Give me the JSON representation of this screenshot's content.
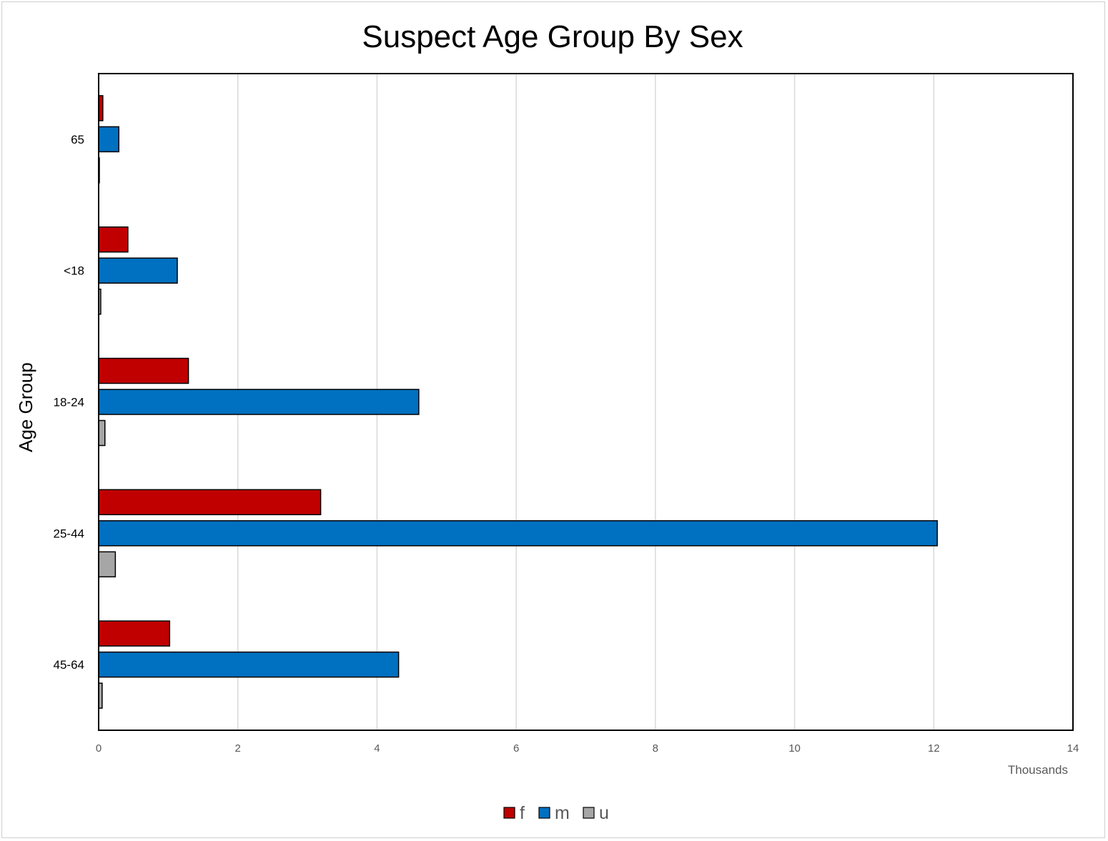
{
  "chart_data": {
    "type": "bar",
    "orientation": "horizontal",
    "title": "Suspect Age Group By Sex",
    "xlabel": "",
    "ylabel": "Age Group",
    "x_units_label": "Thousands",
    "xlim": [
      0,
      14
    ],
    "x_ticks": [
      "0",
      "2",
      "4",
      "6",
      "8",
      "10",
      "12",
      "14"
    ],
    "grid": "vertical",
    "legend_position": "bottom",
    "categories": [
      "65",
      "<18",
      "18-24",
      "25-44",
      "45-64"
    ],
    "series": [
      {
        "name": "f",
        "color": "#c00000",
        "values": [
          0.06,
          0.42,
          1.29,
          3.19,
          1.02
        ]
      },
      {
        "name": "m",
        "color": "#0070c0",
        "values": [
          0.29,
          1.13,
          4.6,
          12.05,
          4.31
        ]
      },
      {
        "name": "u",
        "color": "#a6a6a6",
        "values": [
          0.01,
          0.03,
          0.09,
          0.24,
          0.05
        ]
      }
    ]
  }
}
